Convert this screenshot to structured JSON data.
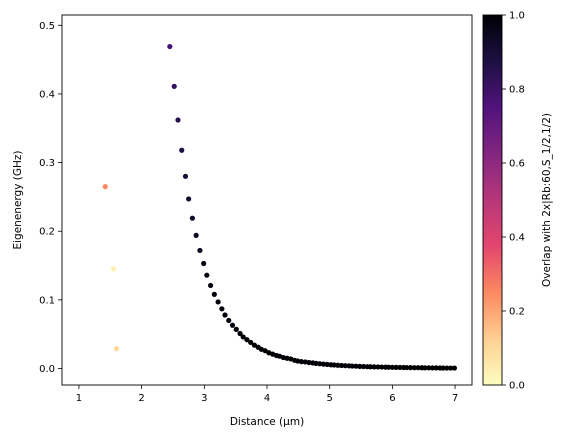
{
  "chart_data": {
    "type": "scatter",
    "xlabel": "Distance (µm)",
    "ylabel": "Eigenenergy (GHz)",
    "xlim": [
      0.73,
      7.27
    ],
    "ylim": [
      -0.024,
      0.515
    ],
    "xticks": [
      1,
      2,
      3,
      4,
      5,
      6,
      7
    ],
    "yticks": [
      0.0,
      0.1,
      0.2,
      0.3,
      0.4,
      0.5
    ],
    "colorbar": {
      "label": "Overlap with 2x|Rb:60,S_1/2,1/2)",
      "range": [
        0.0,
        1.0
      ],
      "ticks": [
        0.0,
        0.2,
        0.4,
        0.6,
        0.8,
        1.0
      ],
      "colormap": "magma_r",
      "colors": [
        "#fcfdbf",
        "#fecf92",
        "#fc8961",
        "#e3466e",
        "#b73779",
        "#832681",
        "#51127c",
        "#1c1044",
        "#000004"
      ]
    },
    "grid": false,
    "series": [
      {
        "points": [
          [
            1.42,
            0.265,
            0.25
          ],
          [
            1.55,
            0.145,
            0.03
          ],
          [
            1.6,
            0.029,
            0.1
          ]
        ]
      },
      {
        "points": [
          [
            2.45,
            0.469,
            0.78
          ],
          [
            2.52,
            0.411,
            0.82
          ],
          [
            2.58,
            0.362,
            0.85
          ],
          [
            2.64,
            0.318,
            0.87
          ],
          [
            2.7,
            0.28,
            0.9
          ],
          [
            2.75,
            0.247,
            0.92
          ],
          [
            2.81,
            0.219,
            0.93
          ],
          [
            2.87,
            0.194,
            0.94
          ],
          [
            2.93,
            0.172,
            0.95
          ],
          [
            2.99,
            0.153,
            0.96
          ],
          [
            3.04,
            0.136,
            0.97
          ],
          [
            3.1,
            0.121,
            0.97
          ],
          [
            3.16,
            0.108,
            0.98
          ],
          [
            3.22,
            0.097,
            0.98
          ],
          [
            3.28,
            0.087,
            0.98
          ],
          [
            3.33,
            0.078,
            0.99
          ],
          [
            3.39,
            0.07,
            0.99
          ],
          [
            3.45,
            0.063,
            0.99
          ],
          [
            3.51,
            0.057,
            0.99
          ],
          [
            3.57,
            0.051,
            0.99
          ],
          [
            3.62,
            0.046,
            1.0
          ],
          [
            3.68,
            0.042,
            1.0
          ],
          [
            3.74,
            0.038,
            1.0
          ],
          [
            3.8,
            0.034,
            1.0
          ],
          [
            3.86,
            0.031,
            1.0
          ],
          [
            3.91,
            0.028,
            1.0
          ],
          [
            3.97,
            0.026,
            1.0
          ],
          [
            4.03,
            0.023,
            1.0
          ],
          [
            4.09,
            0.021,
            1.0
          ],
          [
            4.15,
            0.019,
            1.0
          ],
          [
            4.2,
            0.018,
            1.0
          ],
          [
            4.26,
            0.016,
            1.0
          ],
          [
            4.32,
            0.015,
            1.0
          ],
          [
            4.38,
            0.014,
            1.0
          ],
          [
            4.44,
            0.012,
            1.0
          ],
          [
            4.49,
            0.011,
            1.0
          ],
          [
            4.55,
            0.01,
            1.0
          ],
          [
            4.61,
            0.0096,
            1.0
          ],
          [
            4.67,
            0.0088,
            1.0
          ],
          [
            4.73,
            0.0082,
            1.0
          ],
          [
            4.78,
            0.0075,
            1.0
          ],
          [
            4.84,
            0.007,
            1.0
          ],
          [
            4.9,
            0.0064,
            1.0
          ],
          [
            4.96,
            0.006,
            1.0
          ],
          [
            5.02,
            0.0055,
            1.0
          ],
          [
            5.07,
            0.0051,
            1.0
          ],
          [
            5.13,
            0.0048,
            1.0
          ],
          [
            5.19,
            0.0044,
            1.0
          ],
          [
            5.25,
            0.0041,
            1.0
          ],
          [
            5.31,
            0.0039,
            1.0
          ],
          [
            5.36,
            0.0036,
            1.0
          ],
          [
            5.42,
            0.0034,
            1.0
          ],
          [
            5.48,
            0.0031,
            1.0
          ],
          [
            5.54,
            0.0029,
            1.0
          ],
          [
            5.6,
            0.0027,
            1.0
          ],
          [
            5.65,
            0.0026,
            1.0
          ],
          [
            5.71,
            0.0024,
            1.0
          ],
          [
            5.77,
            0.0023,
            1.0
          ],
          [
            5.83,
            0.0021,
            1.0
          ],
          [
            5.89,
            0.002,
            1.0
          ],
          [
            5.94,
            0.0019,
            1.0
          ],
          [
            6.0,
            0.0018,
            1.0
          ],
          [
            6.06,
            0.0017,
            1.0
          ],
          [
            6.12,
            0.0016,
            1.0
          ],
          [
            6.18,
            0.0015,
            1.0
          ],
          [
            6.23,
            0.0014,
            1.0
          ],
          [
            6.29,
            0.0013,
            1.0
          ],
          [
            6.35,
            0.0012,
            1.0
          ],
          [
            6.41,
            0.0012,
            1.0
          ],
          [
            6.47,
            0.0011,
            1.0
          ],
          [
            6.52,
            0.001,
            1.0
          ],
          [
            6.58,
            0.001,
            1.0
          ],
          [
            6.64,
            0.0009,
            1.0
          ],
          [
            6.7,
            0.0009,
            1.0
          ],
          [
            6.76,
            0.0008,
            1.0
          ],
          [
            6.81,
            0.0008,
            1.0
          ],
          [
            6.87,
            0.0007,
            1.0
          ],
          [
            6.93,
            0.0007,
            1.0
          ],
          [
            6.99,
            0.0007,
            1.0
          ]
        ]
      }
    ]
  }
}
